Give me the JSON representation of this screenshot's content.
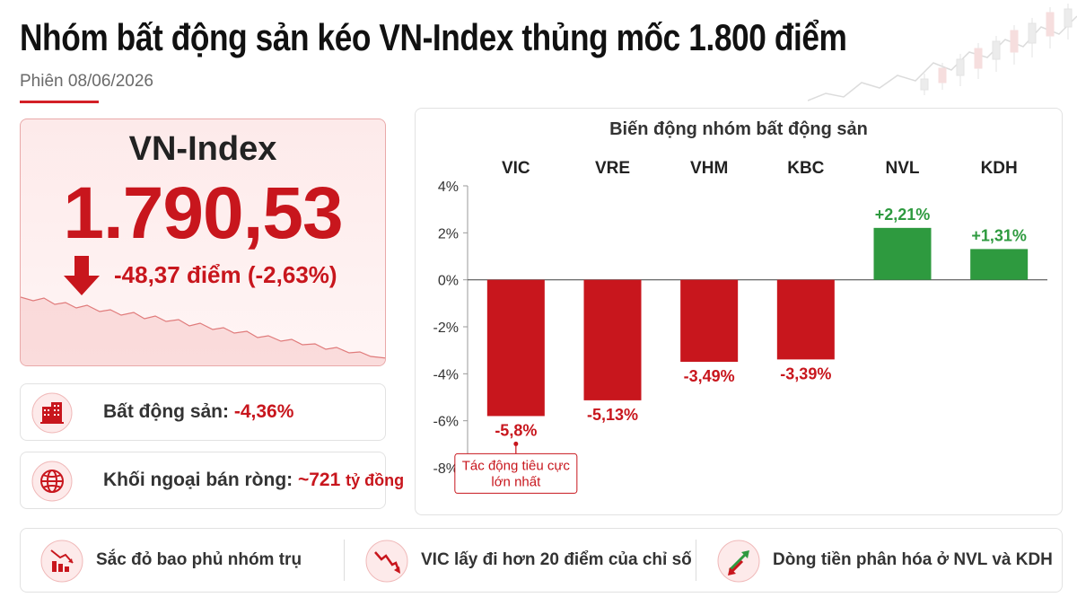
{
  "header": {
    "title": "Nhóm bất động sản kéo VN-Index thủng mốc 1.800 điểm",
    "subtitle": "Phiên 08/06/2026"
  },
  "index": {
    "name": "VN-Index",
    "value": "1.790,53",
    "change": "-48,37 điểm (-2,63%)"
  },
  "info": {
    "real_estate_label": "Bất động sản:",
    "real_estate_value": "-4,36%",
    "foreign_label": "Khối ngoại bán ròng:",
    "foreign_value": "~721",
    "foreign_unit": "tỷ đồng"
  },
  "chart_data": {
    "type": "bar",
    "title": "Biến động nhóm bất động sản",
    "categories": [
      "VIC",
      "VRE",
      "VHM",
      "KBC",
      "NVL",
      "KDH"
    ],
    "values": [
      -5.8,
      -5.13,
      -3.49,
      -3.39,
      2.21,
      1.31
    ],
    "value_labels": [
      "-5,8%",
      "-5,13%",
      "-3,49%",
      "-3,39%",
      "+2,21%",
      "+1,31%"
    ],
    "ylim": [
      -8,
      4
    ],
    "yticks": [
      4,
      2,
      0,
      -2,
      -4,
      -6,
      -8
    ],
    "ytick_labels": [
      "4%",
      "2%",
      "0%",
      "-2%",
      "-4%",
      "-6%",
      "-8%"
    ],
    "colors": {
      "negative": "#c8161d",
      "positive": "#2e9a3f"
    },
    "annotation": {
      "category": "VIC",
      "lines": [
        "Tác động tiêu cực",
        "lớn nhất"
      ]
    }
  },
  "footer": {
    "items": [
      {
        "text": "Sắc đỏ bao phủ nhóm trụ",
        "icon": "red-bars-down-icon"
      },
      {
        "text": "VIC lấy đi hơn 20 điểm của chỉ số",
        "icon": "down-trend-icon"
      },
      {
        "text": "Dòng tiền phân hóa ở NVL và KDH",
        "icon": "divergence-arrows-icon"
      }
    ]
  },
  "colors": {
    "accent_red": "#c8161d",
    "accent_green": "#2e9a3f"
  }
}
